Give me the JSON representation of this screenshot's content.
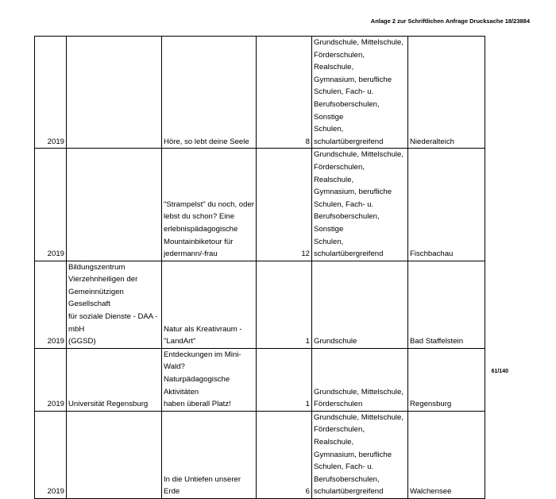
{
  "header": "Anlage 2 zur Schriftlichen Anfrage Drucksache 18/23884",
  "footer": "61/140",
  "rows": [
    {
      "year": "2019",
      "org": "",
      "title": "Höre, so lebt deine Seele",
      "count": "8",
      "schools": "Grundschule, Mittelschule,\nFörderschulen, Realschule,\nGymnasium, berufliche\nSchulen, Fach- u.\nBerufsoberschulen, Sonstige\nSchulen, schulartübergreifend",
      "place": "Niederalteich"
    },
    {
      "year": "2019",
      "org": "",
      "title": "\"Strampelst\" du noch, oder\nlebst du schon? Eine\nerlebnispädagogische\nMountainbiketour für\njedermann/-frau",
      "count": "12",
      "schools": "Grundschule, Mittelschule,\nFörderschulen, Realschule,\nGymnasium, berufliche\nSchulen, Fach- u.\nBerufsoberschulen, Sonstige\nSchulen, schulartübergreifend",
      "place": "Fischbachau"
    },
    {
      "year": "2019",
      "org": "Bildungszentrum\nVierzehnheiligen der\nGemeinnützigen Gesellschaft\nfür soziale Dienste - DAA - mbH\n(GGSD)",
      "title": "Natur als Kreativraum -\n\"LandArt\"",
      "count": "1",
      "schools": "Grundschule",
      "place": "Bad Staffelstein"
    },
    {
      "year": "2019",
      "org": "Universität Regensburg",
      "title": "Entdeckungen im Mini-Wald?\nNaturpädagogische Aktivitäten\nhaben überall Platz!",
      "count": "1",
      "schools": "Grundschule, Mittelschule,\nFörderschulen",
      "place": "Regensburg"
    },
    {
      "year": "2019",
      "org": "",
      "title": "In die Untiefen unserer Erde",
      "count": "6",
      "schools": "Grundschule, Mittelschule,\nFörderschulen, Realschule,\nGymnasium, berufliche\nSchulen, Fach- u.\nBerufsoberschulen,\nschulartübergreifend",
      "place": "Walchensee"
    }
  ]
}
